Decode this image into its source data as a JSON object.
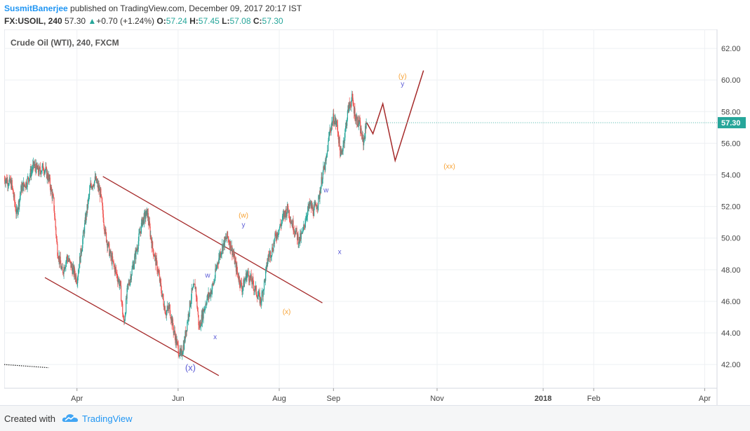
{
  "header": {
    "author": "SusmitBanerjee",
    "published": "published on TradingView.com, December 09, 2017 20:17 IST",
    "symbol": "FX:USOIL, 240",
    "last": "57.30",
    "change": "+0.70 (+1.24%)",
    "o_label": "O:",
    "o_value": "57.24",
    "h_label": "H:",
    "h_value": "57.45",
    "l_label": "L:",
    "l_value": "57.08",
    "c_label": "C:",
    "c_value": "57.30"
  },
  "footer": {
    "created_with": "Created with",
    "brand": "TradingView"
  },
  "colors": {
    "up": "#26a69a",
    "down": "#ef5350",
    "trendline": "#a52a2a",
    "wave_orange": "#f7a336",
    "wave_blue": "#5b5bd6",
    "price_badge": "#26a69a"
  },
  "chart_data": {
    "type": "candlestick",
    "title": "Crude Oil (WTI), 240, FXCM",
    "ylim": [
      40.5,
      63.2
    ],
    "y_ticks": [
      42,
      44,
      46,
      48,
      50,
      52,
      54,
      56,
      58,
      60,
      62
    ],
    "y_tick_labels": [
      "42.00",
      "44.00",
      "46.00",
      "48.00",
      "50.00",
      "52.00",
      "54.00",
      "56.00",
      "58.00",
      "60.00",
      "62.00"
    ],
    "x_tick_labels": [
      "Apr",
      "Jun",
      "Aug",
      "Sep",
      "Nov",
      "2018",
      "Feb",
      "Apr"
    ],
    "x_tick_positions_days": [
      59,
      141,
      223,
      267,
      351,
      437,
      478,
      568
    ],
    "x_tick_bold": [
      false,
      false,
      false,
      false,
      false,
      true,
      false,
      false
    ],
    "current_price": 57.3,
    "current_price_label": "57.30",
    "price_path": [
      [
        0,
        53.8
      ],
      [
        6,
        53.4
      ],
      [
        10,
        51.5
      ],
      [
        14,
        53.2
      ],
      [
        18,
        53.5
      ],
      [
        24,
        54.6
      ],
      [
        28,
        54.2
      ],
      [
        32,
        54.5
      ],
      [
        36,
        53.8
      ],
      [
        40,
        52.3
      ],
      [
        43,
        49.3
      ],
      [
        47,
        47.8
      ],
      [
        51,
        48.8
      ],
      [
        55,
        48.1
      ],
      [
        59,
        47.4
      ],
      [
        62,
        49.0
      ],
      [
        66,
        51.2
      ],
      [
        70,
        53.3
      ],
      [
        74,
        53.7
      ],
      [
        78,
        52.8
      ],
      [
        82,
        50.3
      ],
      [
        86,
        48.9
      ],
      [
        90,
        48.0
      ],
      [
        94,
        47.0
      ],
      [
        97,
        44.5
      ],
      [
        100,
        46.8
      ],
      [
        104,
        48.1
      ],
      [
        108,
        49.5
      ],
      [
        112,
        51.1
      ],
      [
        116,
        51.6
      ],
      [
        120,
        49.5
      ],
      [
        125,
        47.8
      ],
      [
        128,
        46.4
      ],
      [
        131,
        45.3
      ],
      [
        134,
        45.6
      ],
      [
        137,
        44.3
      ],
      [
        140,
        43.3
      ],
      [
        143,
        42.5
      ],
      [
        146,
        43.4
      ],
      [
        149,
        45.0
      ],
      [
        152,
        46.5
      ],
      [
        155,
        47.0
      ],
      [
        158,
        44.3
      ],
      [
        161,
        45.2
      ],
      [
        164,
        46.1
      ],
      [
        167,
        46.5
      ],
      [
        170,
        47.2
      ],
      [
        173,
        48.5
      ],
      [
        177,
        49.5
      ],
      [
        181,
        50.1
      ],
      [
        185,
        49.2
      ],
      [
        189,
        47.8
      ],
      [
        193,
        46.8
      ],
      [
        197,
        47.8
      ],
      [
        201,
        47.2
      ],
      [
        205,
        46.5
      ],
      [
        208,
        46.0
      ],
      [
        211,
        47.2
      ],
      [
        214,
        48.8
      ],
      [
        217,
        49.2
      ],
      [
        220,
        50.1
      ],
      [
        224,
        50.8
      ],
      [
        227,
        51.5
      ],
      [
        230,
        51.9
      ],
      [
        233,
        51.0
      ],
      [
        236,
        50.5
      ],
      [
        239,
        49.8
      ],
      [
        242,
        50.3
      ],
      [
        245,
        51.5
      ],
      [
        248,
        52.1
      ],
      [
        251,
        51.7
      ],
      [
        255,
        52.4
      ],
      [
        258,
        54.0
      ],
      [
        261,
        54.8
      ],
      [
        264,
        56.8
      ],
      [
        267,
        57.6
      ],
      [
        270,
        57.1
      ],
      [
        273,
        55.1
      ],
      [
        276,
        56.5
      ],
      [
        279,
        58.2
      ],
      [
        282,
        58.8
      ],
      [
        285,
        57.6
      ],
      [
        288,
        57.2
      ],
      [
        291,
        56.0
      ],
      [
        294,
        57.3
      ]
    ],
    "projection": [
      [
        294,
        57.3
      ],
      [
        299,
        56.6
      ],
      [
        307,
        58.5
      ],
      [
        317,
        54.9
      ],
      [
        340,
        60.6
      ]
    ],
    "trendlines": [
      {
        "from": [
          80,
          53.9
        ],
        "to": [
          258,
          45.9
        ]
      },
      {
        "from": [
          33,
          47.5
        ],
        "to": [
          174,
          41.3
        ]
      }
    ],
    "left_dotted_line": {
      "from": [
        0,
        42.0
      ],
      "to": [
        36,
        41.8
      ]
    },
    "wave_labels": [
      {
        "text": "(x)",
        "x": 151,
        "y": 41.6,
        "color": "blue",
        "size": 13
      },
      {
        "text": "w",
        "x": 165,
        "y": 47.5,
        "color": "blue",
        "size": 10
      },
      {
        "text": "x",
        "x": 171,
        "y": 43.6,
        "color": "blue",
        "size": 10
      },
      {
        "text": "(w)",
        "x": 194,
        "y": 51.3,
        "color": "orange",
        "size": 10
      },
      {
        "text": "y",
        "x": 194,
        "y": 50.7,
        "color": "blue",
        "size": 10
      },
      {
        "text": "(x)",
        "x": 229,
        "y": 45.2,
        "color": "orange",
        "size": 10
      },
      {
        "text": "w",
        "x": 261,
        "y": 52.9,
        "color": "blue",
        "size": 10
      },
      {
        "text": "x",
        "x": 272,
        "y": 49.0,
        "color": "blue",
        "size": 10
      },
      {
        "text": "(y)",
        "x": 323,
        "y": 60.1,
        "color": "orange",
        "size": 10
      },
      {
        "text": "y",
        "x": 323,
        "y": 59.6,
        "color": "blue",
        "size": 10
      },
      {
        "text": "(xx)",
        "x": 361,
        "y": 54.4,
        "color": "orange",
        "size": 10
      }
    ]
  }
}
